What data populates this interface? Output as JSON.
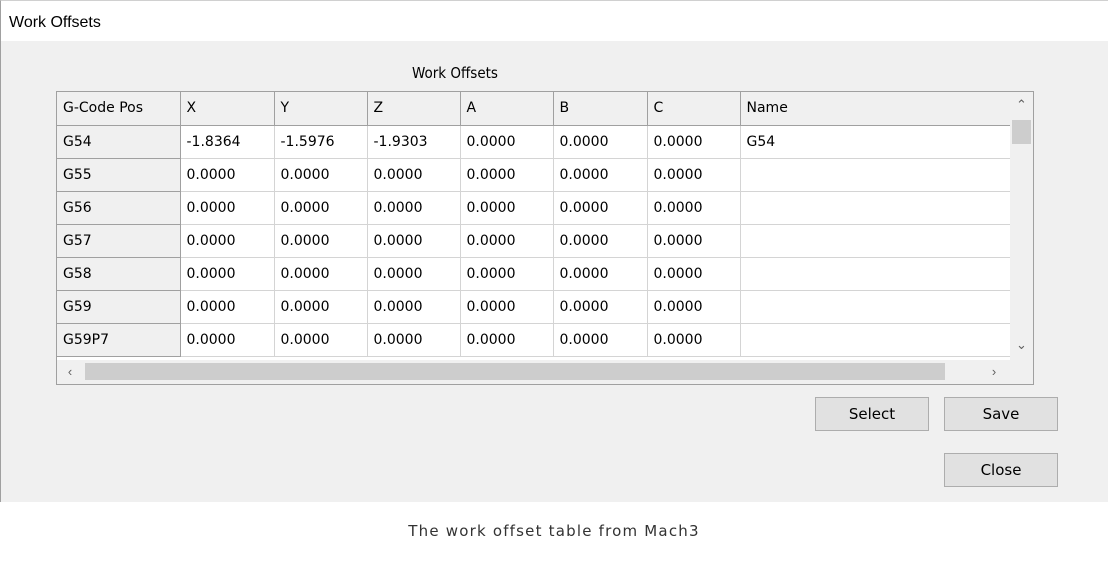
{
  "window": {
    "title": "Work Offsets"
  },
  "panel": {
    "caption": "Work Offsets"
  },
  "table": {
    "columns": [
      "G-Code Pos",
      "X",
      "Y",
      "Z",
      "A",
      "B",
      "C",
      "Name"
    ],
    "rows": [
      [
        "G54",
        "-1.8364",
        "-1.5976",
        "-1.9303",
        "0.0000",
        "0.0000",
        "0.0000",
        "G54"
      ],
      [
        "G55",
        "0.0000",
        "0.0000",
        "0.0000",
        "0.0000",
        "0.0000",
        "0.0000",
        ""
      ],
      [
        "G56",
        "0.0000",
        "0.0000",
        "0.0000",
        "0.0000",
        "0.0000",
        "0.0000",
        ""
      ],
      [
        "G57",
        "0.0000",
        "0.0000",
        "0.0000",
        "0.0000",
        "0.0000",
        "0.0000",
        ""
      ],
      [
        "G58",
        "0.0000",
        "0.0000",
        "0.0000",
        "0.0000",
        "0.0000",
        "0.0000",
        ""
      ],
      [
        "G59",
        "0.0000",
        "0.0000",
        "0.0000",
        "0.0000",
        "0.0000",
        "0.0000",
        ""
      ],
      [
        "G59P7",
        "0.0000",
        "0.0000",
        "0.0000",
        "0.0000",
        "0.0000",
        "0.0000",
        ""
      ]
    ]
  },
  "scrollbars": {
    "up_icon": "chevron-up-icon",
    "down_icon": "chevron-down-icon",
    "left_icon": "chevron-left-icon",
    "right_icon": "chevron-right-icon"
  },
  "buttons": {
    "select_label": "Select",
    "save_label": "Save",
    "close_label": "Close"
  },
  "caption": "The work offset table from Mach3"
}
